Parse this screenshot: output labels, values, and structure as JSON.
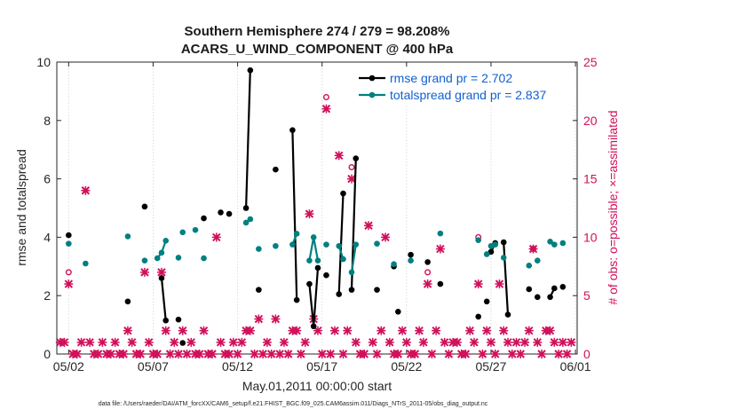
{
  "chart_data": {
    "type": "line",
    "title": "Southern Hemisphere 274 / 279 = 98.208%",
    "subtitle": "ACARS_U_WIND_COMPONENT @ 400 hPa",
    "xlabel": "May.01,2011 00:00:00 start",
    "ylabel": "rmse and totalspread",
    "y2label": "# of obs: o=possible; ×=assimilated",
    "xlim": [
      0.55,
      31.35
    ],
    "ylim": [
      0,
      10
    ],
    "y2lim": [
      0,
      25
    ],
    "x_ticks": [
      1.25,
      6.25,
      11.25,
      16.25,
      21.25,
      26.25,
      31.25
    ],
    "x_tick_labels": [
      "05/02",
      "05/07",
      "05/12",
      "05/17",
      "05/22",
      "05/27",
      "06/01"
    ],
    "y_ticks": [
      0,
      2,
      4,
      6,
      8,
      10
    ],
    "y2_ticks": [
      0,
      5,
      10,
      15,
      20,
      25
    ],
    "grid": "vertical",
    "legend_position": "top-right",
    "footnote": "data file: /Users/raeder/DAI/ATM_forcXX/CAM6_setup/f.e21.FHIST_BGC.f09_025.CAM6assim.011/Diags_NTrS_2011-05/obs_diag_output.nc",
    "series": [
      {
        "name": "rmse grand pr = 2.702",
        "color": "#000000",
        "points": [
          [
            1.25,
            4.07
          ],
          [
            4.75,
            1.8
          ],
          [
            5.75,
            5.05
          ],
          [
            6.75,
            2.6
          ],
          [
            7.0,
            1.15
          ],
          [
            7.75,
            1.18
          ],
          [
            8.0,
            0.38
          ],
          [
            9.25,
            4.65
          ],
          [
            10.25,
            4.85
          ],
          [
            10.75,
            4.8
          ],
          [
            11.75,
            5.0
          ],
          [
            12.0,
            9.72
          ],
          [
            12.5,
            2.2
          ],
          [
            13.5,
            6.32
          ],
          [
            14.5,
            7.67
          ],
          [
            14.75,
            1.85
          ],
          [
            15.5,
            2.4
          ],
          [
            15.75,
            0.95
          ],
          [
            16.0,
            2.95
          ],
          [
            16.5,
            2.7
          ],
          [
            17.25,
            2.05
          ],
          [
            17.5,
            5.5
          ],
          [
            18.0,
            2.2
          ],
          [
            18.25,
            6.7
          ],
          [
            19.5,
            2.2
          ],
          [
            20.5,
            3.0
          ],
          [
            20.75,
            1.45
          ],
          [
            21.5,
            3.4
          ],
          [
            22.5,
            3.15
          ],
          [
            23.25,
            2.4
          ],
          [
            25.5,
            1.28
          ],
          [
            26.0,
            1.8
          ],
          [
            26.25,
            3.5
          ],
          [
            26.5,
            3.8
          ],
          [
            27.0,
            3.83
          ],
          [
            27.25,
            1.35
          ],
          [
            28.5,
            2.22
          ],
          [
            29.0,
            1.95
          ],
          [
            29.75,
            1.95
          ],
          [
            30.0,
            2.25
          ],
          [
            30.5,
            2.3
          ]
        ],
        "segments": [
          [
            [
              6.75,
              2.6
            ],
            [
              7.0,
              1.15
            ]
          ],
          [
            [
              11.75,
              5.0
            ],
            [
              12.0,
              9.72
            ]
          ],
          [
            [
              14.5,
              7.67
            ],
            [
              14.75,
              1.85
            ]
          ],
          [
            [
              15.5,
              2.4
            ],
            [
              15.75,
              0.95
            ],
            [
              16.0,
              2.95
            ]
          ],
          [
            [
              17.25,
              2.05
            ],
            [
              17.5,
              5.5
            ]
          ],
          [
            [
              18.0,
              2.2
            ],
            [
              18.25,
              6.7
            ]
          ],
          [
            [
              26.25,
              3.5
            ],
            [
              26.5,
              3.8
            ]
          ],
          [
            [
              27.0,
              3.83
            ],
            [
              27.25,
              1.35
            ]
          ],
          [
            [
              29.75,
              1.95
            ],
            [
              30.0,
              2.25
            ]
          ]
        ]
      },
      {
        "name": "totalspread grand pr = 2.837",
        "color": "#008080",
        "points": [
          [
            1.25,
            3.78
          ],
          [
            2.25,
            3.1
          ],
          [
            4.75,
            4.03
          ],
          [
            5.75,
            3.2
          ],
          [
            6.5,
            3.28
          ],
          [
            6.75,
            3.47
          ],
          [
            7.0,
            3.88
          ],
          [
            7.75,
            3.3
          ],
          [
            8.0,
            4.17
          ],
          [
            8.75,
            4.25
          ],
          [
            9.25,
            3.28
          ],
          [
            11.75,
            4.5
          ],
          [
            12.0,
            4.62
          ],
          [
            12.5,
            3.6
          ],
          [
            13.5,
            3.7
          ],
          [
            14.5,
            3.75
          ],
          [
            14.75,
            4.12
          ],
          [
            15.5,
            3.2
          ],
          [
            15.75,
            4.0
          ],
          [
            16.0,
            3.2
          ],
          [
            16.5,
            3.75
          ],
          [
            17.25,
            3.7
          ],
          [
            17.5,
            3.25
          ],
          [
            18.0,
            2.8
          ],
          [
            18.25,
            3.75
          ],
          [
            19.5,
            3.78
          ],
          [
            20.5,
            3.08
          ],
          [
            21.5,
            3.2
          ],
          [
            23.25,
            4.13
          ],
          [
            25.5,
            3.9
          ],
          [
            26.0,
            3.42
          ],
          [
            26.25,
            3.7
          ],
          [
            26.5,
            3.75
          ],
          [
            27.0,
            3.3
          ],
          [
            28.5,
            3.03
          ],
          [
            29.0,
            3.2
          ],
          [
            29.75,
            3.85
          ],
          [
            30.0,
            3.75
          ],
          [
            30.5,
            3.8
          ]
        ],
        "segments": [
          [
            [
              6.5,
              3.28
            ],
            [
              6.75,
              3.47
            ],
            [
              7.0,
              3.88
            ]
          ],
          [
            [
              11.75,
              4.5
            ],
            [
              12.0,
              4.62
            ]
          ],
          [
            [
              14.5,
              3.75
            ],
            [
              14.75,
              4.12
            ]
          ],
          [
            [
              15.5,
              3.2
            ],
            [
              15.75,
              4.0
            ],
            [
              16.0,
              3.2
            ]
          ],
          [
            [
              17.25,
              3.7
            ],
            [
              17.5,
              3.25
            ]
          ],
          [
            [
              18.0,
              2.8
            ],
            [
              18.25,
              3.75
            ]
          ],
          [
            [
              26.25,
              3.7
            ],
            [
              26.5,
              3.75
            ]
          ],
          [
            [
              29.75,
              3.85
            ],
            [
              30.0,
              3.75
            ]
          ]
        ]
      }
    ],
    "obs_possible": {
      "name": "possible",
      "color": "#d0105a",
      "points": [
        [
          1.25,
          7.0
        ],
        [
          16.5,
          22.0
        ],
        [
          18.0,
          16.0
        ],
        [
          22.5,
          7.0
        ],
        [
          25.5,
          10.0
        ],
        [
          28.75,
          9.0
        ]
      ]
    },
    "obs_assimilated": {
      "name": "assimilated",
      "color": "#d0105a",
      "points": [
        [
          0.75,
          1
        ],
        [
          1.0,
          1
        ],
        [
          1.25,
          6
        ],
        [
          1.5,
          0
        ],
        [
          1.75,
          0
        ],
        [
          2.0,
          1
        ],
        [
          2.25,
          14
        ],
        [
          2.5,
          1
        ],
        [
          2.75,
          0
        ],
        [
          3.0,
          0
        ],
        [
          3.25,
          1
        ],
        [
          3.5,
          0
        ],
        [
          3.75,
          0
        ],
        [
          4.0,
          1
        ],
        [
          4.25,
          0
        ],
        [
          4.5,
          0
        ],
        [
          4.75,
          2
        ],
        [
          5.0,
          1
        ],
        [
          5.25,
          0
        ],
        [
          5.5,
          0
        ],
        [
          5.75,
          7
        ],
        [
          6.0,
          1
        ],
        [
          6.25,
          0
        ],
        [
          6.5,
          0
        ],
        [
          6.75,
          7
        ],
        [
          7.0,
          2
        ],
        [
          7.25,
          0
        ],
        [
          7.5,
          1
        ],
        [
          7.75,
          0
        ],
        [
          8.0,
          2
        ],
        [
          8.25,
          0
        ],
        [
          8.5,
          1
        ],
        [
          8.75,
          0
        ],
        [
          9.0,
          0
        ],
        [
          9.25,
          2
        ],
        [
          9.5,
          0
        ],
        [
          9.75,
          0
        ],
        [
          10.0,
          10
        ],
        [
          10.25,
          1
        ],
        [
          10.5,
          0
        ],
        [
          10.75,
          0
        ],
        [
          11.0,
          1
        ],
        [
          11.25,
          0
        ],
        [
          11.5,
          1
        ],
        [
          11.75,
          2
        ],
        [
          12.0,
          2
        ],
        [
          12.25,
          0
        ],
        [
          12.5,
          3
        ],
        [
          12.75,
          0
        ],
        [
          13.0,
          1
        ],
        [
          13.25,
          0
        ],
        [
          13.5,
          3
        ],
        [
          13.75,
          0
        ],
        [
          14.0,
          1
        ],
        [
          14.25,
          0
        ],
        [
          14.5,
          2
        ],
        [
          14.75,
          2
        ],
        [
          15.0,
          0
        ],
        [
          15.25,
          1
        ],
        [
          15.5,
          12
        ],
        [
          15.75,
          3
        ],
        [
          16.0,
          2
        ],
        [
          16.25,
          0
        ],
        [
          16.5,
          21
        ],
        [
          16.75,
          0
        ],
        [
          17.0,
          2
        ],
        [
          17.25,
          17
        ],
        [
          17.5,
          0
        ],
        [
          17.75,
          2
        ],
        [
          18.0,
          15
        ],
        [
          18.25,
          1
        ],
        [
          18.5,
          0
        ],
        [
          18.75,
          0
        ],
        [
          19.0,
          11
        ],
        [
          19.25,
          1
        ],
        [
          19.5,
          0
        ],
        [
          19.75,
          2
        ],
        [
          20.0,
          10
        ],
        [
          20.25,
          1
        ],
        [
          20.5,
          0
        ],
        [
          20.75,
          0
        ],
        [
          21.0,
          2
        ],
        [
          21.25,
          1
        ],
        [
          21.5,
          0
        ],
        [
          21.75,
          0
        ],
        [
          22.0,
          2
        ],
        [
          22.25,
          1
        ],
        [
          22.5,
          6
        ],
        [
          22.75,
          0
        ],
        [
          23.0,
          2
        ],
        [
          23.25,
          9
        ],
        [
          23.5,
          1
        ],
        [
          23.75,
          0
        ],
        [
          24.0,
          1
        ],
        [
          24.25,
          1
        ],
        [
          24.5,
          0
        ],
        [
          24.75,
          0
        ],
        [
          25.0,
          2
        ],
        [
          25.25,
          1
        ],
        [
          25.5,
          6
        ],
        [
          25.75,
          0
        ],
        [
          26.0,
          2
        ],
        [
          26.25,
          1
        ],
        [
          26.5,
          0
        ],
        [
          26.75,
          6
        ],
        [
          27.0,
          2
        ],
        [
          27.25,
          1
        ],
        [
          27.5,
          0
        ],
        [
          27.75,
          1
        ],
        [
          28.0,
          0
        ],
        [
          28.25,
          1
        ],
        [
          28.5,
          2
        ],
        [
          28.75,
          9
        ],
        [
          29.0,
          1
        ],
        [
          29.25,
          0
        ],
        [
          29.5,
          2
        ],
        [
          29.75,
          2
        ],
        [
          30.0,
          1
        ],
        [
          30.25,
          0
        ],
        [
          30.5,
          1
        ],
        [
          30.75,
          0
        ],
        [
          31.0,
          1
        ]
      ]
    }
  }
}
